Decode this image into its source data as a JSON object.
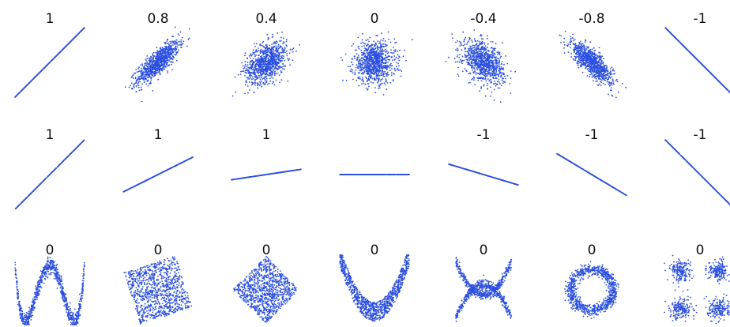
{
  "chart_data": {
    "type": "scatter",
    "point_color": "#2b4fe0",
    "panels": [
      {
        "row": 1,
        "col": 1,
        "label": "1",
        "shape": "linear",
        "r": 1
      },
      {
        "row": 1,
        "col": 2,
        "label": "0.8",
        "shape": "gaussian",
        "r": 0.8
      },
      {
        "row": 1,
        "col": 3,
        "label": "0.4",
        "shape": "gaussian",
        "r": 0.4
      },
      {
        "row": 1,
        "col": 4,
        "label": "0",
        "shape": "gaussian",
        "r": 0
      },
      {
        "row": 1,
        "col": 5,
        "label": "-0.4",
        "shape": "gaussian",
        "r": -0.4
      },
      {
        "row": 1,
        "col": 6,
        "label": "-0.8",
        "shape": "gaussian",
        "r": -0.8
      },
      {
        "row": 1,
        "col": 7,
        "label": "-1",
        "shape": "linear",
        "r": -1
      },
      {
        "row": 2,
        "col": 1,
        "label": "1",
        "shape": "line",
        "slope": 1
      },
      {
        "row": 2,
        "col": 2,
        "label": "1",
        "shape": "line",
        "slope": 0.5
      },
      {
        "row": 2,
        "col": 3,
        "label": "1",
        "shape": "line",
        "slope": 0.15
      },
      {
        "row": 2,
        "col": 4,
        "label": "",
        "shape": "line",
        "slope": 0
      },
      {
        "row": 2,
        "col": 5,
        "label": "-1",
        "shape": "line",
        "slope": -0.3
      },
      {
        "row": 2,
        "col": 6,
        "label": "-1",
        "shape": "line",
        "slope": -0.6
      },
      {
        "row": 2,
        "col": 7,
        "label": "-1",
        "shape": "line",
        "slope": -1
      },
      {
        "row": 3,
        "col": 1,
        "label": "0",
        "shape": "w-curve"
      },
      {
        "row": 3,
        "col": 2,
        "label": "0",
        "shape": "rotated-square"
      },
      {
        "row": 3,
        "col": 3,
        "label": "0",
        "shape": "diamond"
      },
      {
        "row": 3,
        "col": 4,
        "label": "0",
        "shape": "parabola"
      },
      {
        "row": 3,
        "col": 5,
        "label": "0",
        "shape": "x-cross"
      },
      {
        "row": 3,
        "col": 6,
        "label": "0",
        "shape": "ring"
      },
      {
        "row": 3,
        "col": 7,
        "label": "0",
        "shape": "four-clusters"
      }
    ]
  }
}
